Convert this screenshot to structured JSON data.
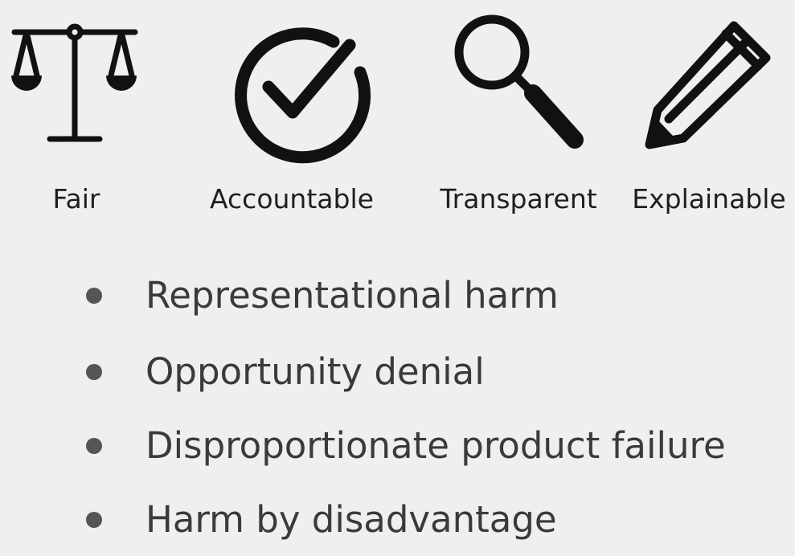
{
  "colors": {
    "background": "#efefef",
    "icon": "#111111",
    "label_text": "#1f1f1f",
    "bullet_text": "#3a3a3a",
    "bullet_dot": "#555555"
  },
  "principles": [
    {
      "label": "Fair",
      "icon": "scales-icon"
    },
    {
      "label": "Accountable",
      "icon": "checkmark-circle-icon"
    },
    {
      "label": "Transparent",
      "icon": "magnifying-glass-icon"
    },
    {
      "label": "Explainable",
      "icon": "pencil-icon"
    }
  ],
  "harms": [
    "Representational harm",
    "Opportunity denial",
    "Disproportionate product failure",
    "Harm by disadvantage"
  ]
}
